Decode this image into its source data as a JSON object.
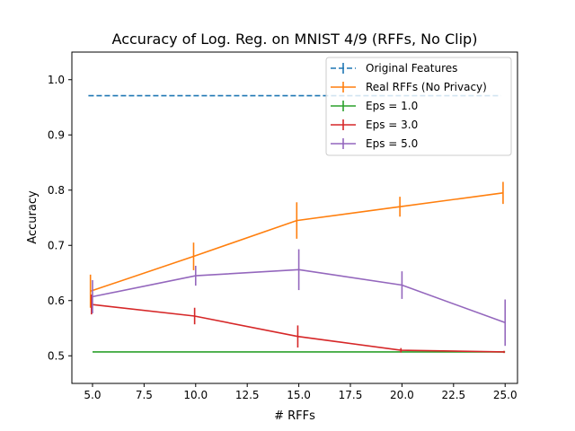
{
  "chart_data": {
    "type": "line",
    "title": "Accuracy of Log. Reg. on MNIST 4/9 (RFFs, No Clip)",
    "xlabel": "# RFFs",
    "ylabel": "Accuracy",
    "xlim": [
      4.0,
      25.6
    ],
    "ylim": [
      0.45,
      1.05
    ],
    "xticks": [
      5.0,
      7.5,
      10.0,
      12.5,
      15.0,
      17.5,
      20.0,
      22.5,
      25.0
    ],
    "xtick_labels": [
      "5.0",
      "7.5",
      "10.0",
      "12.5",
      "15.0",
      "17.5",
      "20.0",
      "22.5",
      "25.0"
    ],
    "yticks": [
      0.5,
      0.6,
      0.7,
      0.8,
      0.9,
      1.0
    ],
    "ytick_labels": [
      "0.5",
      "0.6",
      "0.7",
      "0.8",
      "0.9",
      "1.0"
    ],
    "grid": false,
    "legend_position": "top-right",
    "series": [
      {
        "name": "Original Features",
        "color": "#1f77b4",
        "dashed": true,
        "x": [
          4.8,
          24.8
        ],
        "y": [
          0.971,
          0.971
        ],
        "err": [
          0.0,
          0.0
        ]
      },
      {
        "name": "Real RFFs (No Privacy)",
        "color": "#ff7f0e",
        "dashed": false,
        "x": [
          4.9,
          9.9,
          14.9,
          19.9,
          24.9
        ],
        "y": [
          0.617,
          0.68,
          0.745,
          0.77,
          0.795
        ],
        "err": [
          0.03,
          0.025,
          0.033,
          0.018,
          0.02
        ]
      },
      {
        "name": "Eps = 1.0",
        "color": "#2ca02c",
        "dashed": false,
        "x": [
          5.0,
          10.0,
          15.0,
          20.0,
          25.0
        ],
        "y": [
          0.507,
          0.507,
          0.507,
          0.507,
          0.507
        ],
        "err": [
          0.0,
          0.0,
          0.0,
          0.0,
          0.0
        ]
      },
      {
        "name": "Eps = 3.0",
        "color": "#d62728",
        "dashed": false,
        "x": [
          4.95,
          9.95,
          14.95,
          19.95,
          24.95
        ],
        "y": [
          0.593,
          0.572,
          0.535,
          0.51,
          0.507
        ],
        "err": [
          0.018,
          0.015,
          0.02,
          0.004,
          0.002
        ]
      },
      {
        "name": "Eps = 5.0",
        "color": "#9467bd",
        "dashed": false,
        "x": [
          5.0,
          10.0,
          15.0,
          20.0,
          25.0
        ],
        "y": [
          0.607,
          0.645,
          0.656,
          0.628,
          0.56
        ],
        "err": [
          0.03,
          0.018,
          0.037,
          0.025,
          0.042
        ]
      }
    ]
  }
}
